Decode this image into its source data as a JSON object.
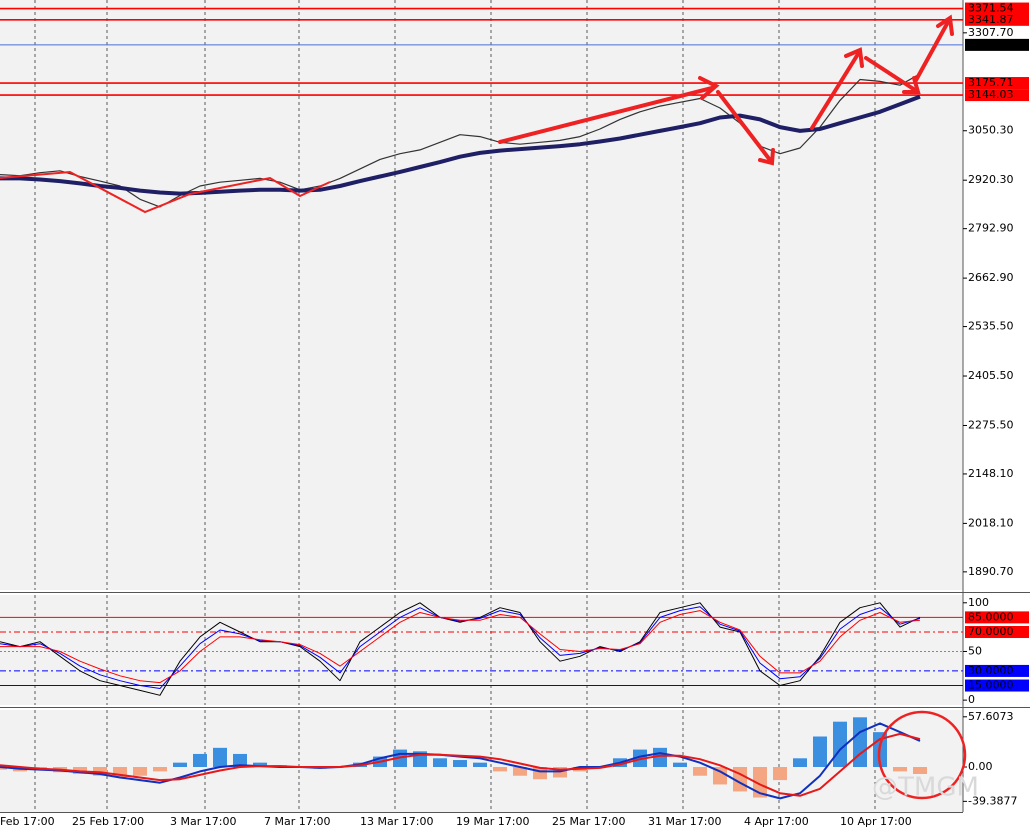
{
  "watermark": "@TMGM",
  "chart_data": [
    {
      "type": "line",
      "x": [
        0,
        1,
        2,
        3,
        4,
        5,
        6,
        7,
        8,
        9,
        10,
        11,
        12,
        13,
        14,
        15,
        16,
        17,
        18,
        19,
        20,
        21,
        22,
        23,
        24,
        25,
        26,
        27,
        28,
        29,
        30,
        31,
        32,
        33,
        34,
        35,
        36,
        37,
        38,
        39,
        40,
        41,
        42,
        43,
        44,
        45,
        46
      ],
      "series": [
        {
          "color": "#333333",
          "width": 1.2,
          "values": [
            2935,
            2932,
            2940,
            2945,
            2930,
            2918,
            2905,
            2870,
            2850,
            2880,
            2905,
            2915,
            2920,
            2925,
            2915,
            2895,
            2905,
            2925,
            2950,
            2975,
            2990,
            3000,
            3020,
            3040,
            3035,
            3020,
            3015,
            3020,
            3025,
            3035,
            3055,
            3080,
            3100,
            3115,
            3125,
            3135,
            3110,
            3070,
            3010,
            2990,
            3005,
            3060,
            3130,
            3185,
            3180,
            3170,
            3200
          ]
        },
        {
          "color": "#1f1f66",
          "width": 4,
          "values": [
            2925,
            2925,
            2922,
            2918,
            2912,
            2905,
            2900,
            2893,
            2888,
            2885,
            2887,
            2890,
            2893,
            2895,
            2895,
            2893,
            2895,
            2905,
            2918,
            2930,
            2942,
            2955,
            2968,
            2982,
            2992,
            2998,
            3002,
            3006,
            3010,
            3015,
            3022,
            3030,
            3040,
            3050,
            3060,
            3070,
            3085,
            3090,
            3080,
            3060,
            3050,
            3055,
            3070,
            3085,
            3100,
            3120,
            3140
          ]
        }
      ],
      "xlim": [
        0,
        48.15
      ],
      "xticks": [
        {
          "value": 0,
          "label": "Feb 17:00"
        },
        {
          "value": 3.6,
          "label": "25 Feb 17:00"
        },
        {
          "value": 8.5,
          "label": "3 Mar 17:00"
        },
        {
          "value": 13.2,
          "label": "7 Mar 17:00"
        },
        {
          "value": 18,
          "label": "13 Mar 17:00"
        },
        {
          "value": 22.8,
          "label": "19 Mar 17:00"
        },
        {
          "value": 27.6,
          "label": "25 Mar 17:00"
        },
        {
          "value": 32.4,
          "label": "31 Mar 17:00"
        },
        {
          "value": 37.2,
          "label": "4 Apr 17:00"
        },
        {
          "value": 42,
          "label": "10 Apr 17:00"
        }
      ],
      "ylim": [
        1843,
        3394
      ],
      "yticks": [
        {
          "value": 3307.7,
          "label": "3307.70"
        },
        {
          "value": 3050.3,
          "label": "3050.30"
        },
        {
          "value": 2920.3,
          "label": "2920.30"
        },
        {
          "value": 2792.9,
          "label": "2792.90"
        },
        {
          "value": 2662.9,
          "label": "2662.90"
        },
        {
          "value": 2535.5,
          "label": "2535.50"
        },
        {
          "value": 2405.5,
          "label": "2405.50"
        },
        {
          "value": 2275.5,
          "label": "2275.50"
        },
        {
          "value": 2148.1,
          "label": "2148.10"
        },
        {
          "value": 2018.1,
          "label": "2018.10"
        },
        {
          "value": 1890.7,
          "label": "1890.70"
        }
      ],
      "levels": [
        {
          "value": 3371.54,
          "color": "#ff0000"
        },
        {
          "value": 3341.87,
          "color": "#ff0000"
        },
        {
          "value": 3276.02,
          "color": "#4a6fd8",
          "label_color": "#000000"
        },
        {
          "value": 3175.71,
          "color": "#ff0000"
        },
        {
          "value": 3144.03,
          "color": "#ff0000"
        }
      ]
    },
    {
      "type": "line",
      "x": [
        0,
        1,
        2,
        3,
        4,
        5,
        6,
        7,
        8,
        9,
        10,
        11,
        12,
        13,
        14,
        15,
        16,
        17,
        18,
        19,
        20,
        21,
        22,
        23,
        24,
        25,
        26,
        27,
        28,
        29,
        30,
        31,
        32,
        33,
        34,
        35,
        36,
        37,
        38,
        39,
        40,
        41,
        42,
        43,
        44,
        45,
        46
      ],
      "series": [
        {
          "color": "#000000",
          "width": 1,
          "values": [
            60,
            55,
            60,
            45,
            30,
            20,
            15,
            10,
            5,
            40,
            65,
            80,
            70,
            60,
            60,
            55,
            40,
            20,
            60,
            75,
            90,
            100,
            85,
            80,
            85,
            95,
            90,
            60,
            40,
            45,
            55,
            50,
            60,
            90,
            95,
            100,
            75,
            70,
            30,
            15,
            20,
            45,
            80,
            95,
            100,
            75,
            85
          ]
        },
        {
          "color": "#0000ff",
          "width": 1,
          "values": [
            58,
            55,
            58,
            48,
            35,
            26,
            20,
            15,
            12,
            35,
            58,
            72,
            68,
            61,
            60,
            56,
            44,
            28,
            55,
            70,
            85,
            95,
            85,
            81,
            84,
            92,
            88,
            64,
            46,
            48,
            54,
            51,
            59,
            85,
            92,
            96,
            78,
            71,
            38,
            22,
            24,
            43,
            73,
            88,
            95,
            78,
            84
          ]
        },
        {
          "color": "#ff0000",
          "width": 1,
          "values": [
            55,
            55,
            55,
            50,
            40,
            32,
            25,
            20,
            18,
            30,
            50,
            65,
            65,
            62,
            60,
            57,
            48,
            35,
            50,
            65,
            80,
            90,
            85,
            82,
            82,
            88,
            85,
            68,
            52,
            50,
            53,
            52,
            58,
            80,
            88,
            92,
            80,
            72,
            45,
            28,
            28,
            40,
            65,
            82,
            90,
            80,
            82
          ]
        }
      ],
      "xlim": [
        0,
        48.15
      ],
      "ylim": [
        -5,
        108
      ],
      "yticks": [
        100,
        50,
        0
      ],
      "levels": [
        {
          "value": 85,
          "label": "85.0000",
          "color": "#ff0000",
          "dash": ""
        },
        {
          "value": 70,
          "label": "70.0000",
          "color": "#ff0000",
          "dash": "6 3 2 3"
        },
        {
          "value": 30,
          "label": "30.0000",
          "color": "#0000ff",
          "dash": "6 3 2 3"
        },
        {
          "value": 15,
          "label": "15.0000",
          "color": "#0000ff",
          "dash": ""
        }
      ]
    },
    {
      "type": "bar",
      "x": [
        0,
        1,
        2,
        3,
        4,
        5,
        6,
        7,
        8,
        9,
        10,
        11,
        12,
        13,
        14,
        15,
        16,
        17,
        18,
        19,
        20,
        21,
        22,
        23,
        24,
        25,
        26,
        27,
        28,
        29,
        30,
        31,
        32,
        33,
        34,
        35,
        36,
        37,
        38,
        39,
        40,
        41,
        42,
        43,
        44,
        45,
        46
      ],
      "values": [
        -3,
        -5,
        -4,
        -6,
        -8,
        -10,
        -12,
        -10,
        -5,
        5,
        15,
        22,
        15,
        5,
        2,
        0,
        -2,
        0,
        5,
        12,
        20,
        18,
        10,
        8,
        5,
        -5,
        -10,
        -14,
        -12,
        -5,
        0,
        10,
        20,
        22,
        5,
        -10,
        -20,
        -28,
        -35,
        -15,
        10,
        35,
        52,
        57,
        40,
        -5,
        -8
      ],
      "up_color": "#3a8fe0",
      "down_color": "#f4a582",
      "series": [
        {
          "color": "#1030c0",
          "width": 2,
          "values": [
            0,
            -2,
            -3,
            -4,
            -6,
            -8,
            -12,
            -15,
            -18,
            -12,
            -5,
            0,
            2,
            1,
            0,
            0,
            -1,
            0,
            3,
            10,
            15,
            15,
            14,
            12,
            10,
            5,
            0,
            -5,
            -5,
            0,
            0,
            5,
            12,
            16,
            12,
            5,
            -5,
            -18,
            -30,
            -36,
            -30,
            -10,
            20,
            40,
            50,
            40,
            30
          ]
        },
        {
          "color": "#e81818",
          "width": 2,
          "values": [
            2,
            0,
            -2,
            -3,
            -5,
            -6,
            -9,
            -12,
            -15,
            -14,
            -9,
            -4,
            0,
            1,
            1,
            0,
            0,
            0,
            2,
            6,
            11,
            14,
            14,
            13,
            12,
            9,
            4,
            -1,
            -3,
            -2,
            -1,
            3,
            9,
            13,
            13,
            9,
            2,
            -8,
            -20,
            -30,
            -33,
            -25,
            -5,
            15,
            32,
            38,
            32
          ]
        }
      ],
      "xlim": [
        0,
        48.15
      ],
      "ylim": [
        -51.6,
        65.4
      ],
      "yticks": [
        57.6073,
        {
          "value": 0,
          "label": "0.00"
        },
        -39.3877
      ]
    }
  ]
}
